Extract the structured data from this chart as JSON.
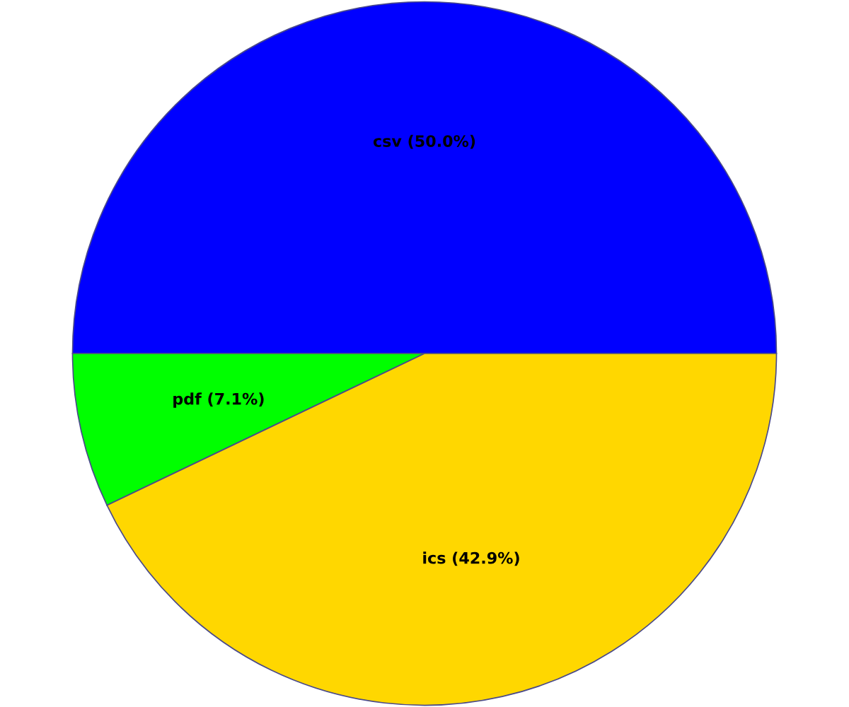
{
  "chart_data": {
    "type": "pie",
    "categories": [
      "csv",
      "pdf",
      "ics"
    ],
    "values": [
      50.0,
      7.1,
      42.9
    ],
    "value_labels": [
      "(50.0%)",
      "(7.1%)",
      "(42.9%)"
    ],
    "colors": [
      "#0000ff",
      "#00ff00",
      "#ffd700"
    ],
    "legend": false
  }
}
